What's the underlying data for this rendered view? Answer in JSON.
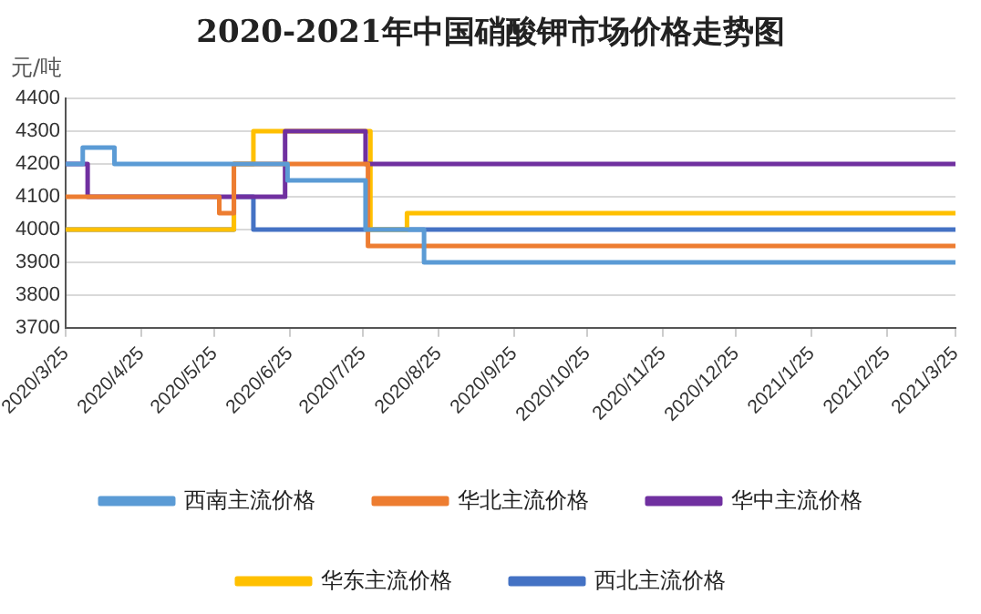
{
  "chart_data": {
    "type": "step",
    "title": "2020-2021年中国硝酸钾市场价格走势图",
    "ylabel": "元/吨",
    "ylim": [
      3700,
      4400
    ],
    "yticks": [
      3700,
      3800,
      3900,
      4000,
      4100,
      4200,
      4300,
      4400
    ],
    "xlim": [
      "2020-03-25",
      "2021-03-25"
    ],
    "xticks": [
      {
        "value": "2020-03-25",
        "label": "2020/3/25"
      },
      {
        "value": "2020-04-25",
        "label": "2020/4/25"
      },
      {
        "value": "2020-05-25",
        "label": "2020/5/25"
      },
      {
        "value": "2020-06-25",
        "label": "2020/6/25"
      },
      {
        "value": "2020-07-25",
        "label": "2020/7/25"
      },
      {
        "value": "2020-08-25",
        "label": "2020/8/25"
      },
      {
        "value": "2020-09-25",
        "label": "2020/9/25"
      },
      {
        "value": "2020-10-25",
        "label": "2020/10/25"
      },
      {
        "value": "2020-11-25",
        "label": "2020/11/25"
      },
      {
        "value": "2020-12-25",
        "label": "2020/12/25"
      },
      {
        "value": "2021-01-25",
        "label": "2021/1/25"
      },
      {
        "value": "2021-02-25",
        "label": "2021/2/25"
      },
      {
        "value": "2021-03-25",
        "label": "2021/3/25"
      }
    ],
    "grid": "y",
    "legend": "bottom",
    "line_style": "solid",
    "marker": "none",
    "series": [
      {
        "name": "西南主流价格",
        "color": "#5b9bd5",
        "x": [
          "2020-03-25",
          "2020-04-01",
          "2020-04-14",
          "2020-06-24",
          "2020-07-26",
          "2020-08-19",
          "2021-03-25"
        ],
        "values": [
          4200,
          4250,
          4200,
          4150,
          4000,
          3900,
          3900
        ]
      },
      {
        "name": "华北主流价格",
        "color": "#ed7d31",
        "x": [
          "2020-03-25",
          "2020-05-27",
          "2020-06-02",
          "2020-07-27",
          "2021-03-25"
        ],
        "values": [
          4100,
          4050,
          4200,
          3950,
          3950
        ]
      },
      {
        "name": "华中主流价格",
        "color": "#7030a0",
        "x": [
          "2020-03-25",
          "2020-04-03",
          "2020-06-23",
          "2020-07-26",
          "2021-03-25"
        ],
        "values": [
          4200,
          4100,
          4300,
          4200,
          4200
        ]
      },
      {
        "name": "华东主流价格",
        "color": "#ffc000",
        "x": [
          "2020-03-25",
          "2020-06-02",
          "2020-06-10",
          "2020-07-28",
          "2020-08-12",
          "2021-03-25"
        ],
        "values": [
          4000,
          4200,
          4300,
          4000,
          4050,
          4050
        ]
      },
      {
        "name": "西北主流价格",
        "color": "#4472c4",
        "x": [
          "2020-03-25",
          "2020-06-02",
          "2020-06-10",
          "2021-03-25"
        ],
        "values": [
          4000,
          4100,
          4000,
          4000
        ]
      }
    ]
  }
}
